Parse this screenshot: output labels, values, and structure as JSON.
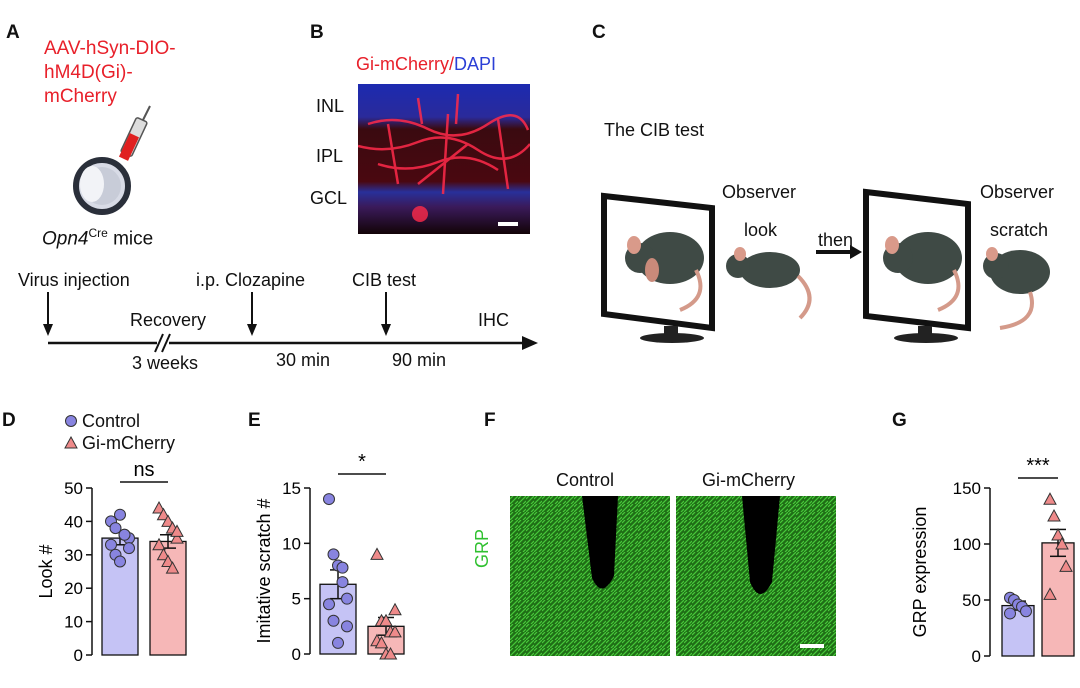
{
  "panels": {
    "A": {
      "label": "A",
      "construct": [
        "AAV-hSyn-DIO-",
        "hM4D(Gi)-",
        "mCherry"
      ],
      "mouse_gene": "Opn4",
      "mouse_super": "Cre",
      "mouse_suffix": " mice",
      "timeline": {
        "events": [
          "Virus injection",
          "i.p. Clozapine",
          "CIB test",
          "IHC"
        ],
        "intervals": [
          "Recovery",
          "3 weeks",
          "30 min",
          "90 min"
        ]
      }
    },
    "B": {
      "label": "B",
      "title_red": "Gi-mCherry",
      "title_sep": "/",
      "title_blue": "DAPI",
      "layers": [
        "INL",
        "IPL",
        "GCL"
      ]
    },
    "C": {
      "label": "C",
      "title": "The CIB test",
      "observer1": [
        "Observer",
        "look"
      ],
      "then": "then",
      "observer2": [
        "Observer",
        "scratch"
      ]
    },
    "D": {
      "label": "D",
      "legend": [
        "Control",
        "Gi-mCherry"
      ],
      "sig": "ns"
    },
    "E": {
      "label": "E",
      "sig": "*"
    },
    "F": {
      "label": "F",
      "ylabel": "GRP",
      "cols": [
        "Control",
        "Gi-mCherry"
      ]
    },
    "G": {
      "label": "G",
      "sig": "***"
    }
  },
  "colors": {
    "control_fill": "#c5c3f5",
    "control_marker": "#8884e0",
    "gi_fill": "#f6b7b7",
    "gi_marker": "#ee8a8a",
    "red_text": "#e8202a",
    "blue_text": "#2b3fd6",
    "grp_green": "#2fc02f"
  },
  "chart_data": [
    {
      "panel": "D",
      "type": "bar",
      "categories": [
        "Control",
        "Gi-mCherry"
      ],
      "values": [
        35,
        34
      ],
      "sem": [
        2,
        2
      ],
      "points": [
        [
          40,
          38,
          42,
          36,
          35,
          33,
          30,
          28,
          36,
          32
        ],
        [
          44,
          42,
          40,
          38,
          35,
          33,
          30,
          28,
          26,
          37
        ]
      ],
      "ylabel": "Look #",
      "ylim": [
        0,
        50
      ],
      "yticks": [
        0,
        10,
        20,
        30,
        40,
        50
      ]
    },
    {
      "panel": "E",
      "type": "bar",
      "categories": [
        "Control",
        "Gi-mCherry"
      ],
      "values": [
        6.3,
        2.5
      ],
      "sem": [
        1.3,
        0.8
      ],
      "points": [
        [
          14,
          9,
          8,
          6.5,
          5,
          4.5,
          3,
          1,
          7.8,
          2.5
        ],
        [
          9,
          3,
          3,
          2,
          2,
          1.2,
          1,
          0,
          0,
          4
        ]
      ],
      "ylabel": "Imitative scratch #",
      "ylim": [
        0,
        15
      ],
      "yticks": [
        0,
        5,
        10,
        15
      ]
    },
    {
      "panel": "G",
      "type": "bar",
      "categories": [
        "Control",
        "Gi-mCherry"
      ],
      "values": [
        45,
        101
      ],
      "sem": [
        4,
        12
      ],
      "points": [
        [
          52,
          50,
          46,
          44,
          40,
          38
        ],
        [
          140,
          125,
          108,
          100,
          80,
          55
        ]
      ],
      "ylabel": "GRP expression",
      "ylim": [
        0,
        150
      ],
      "yticks": [
        0,
        50,
        100,
        150
      ]
    }
  ]
}
